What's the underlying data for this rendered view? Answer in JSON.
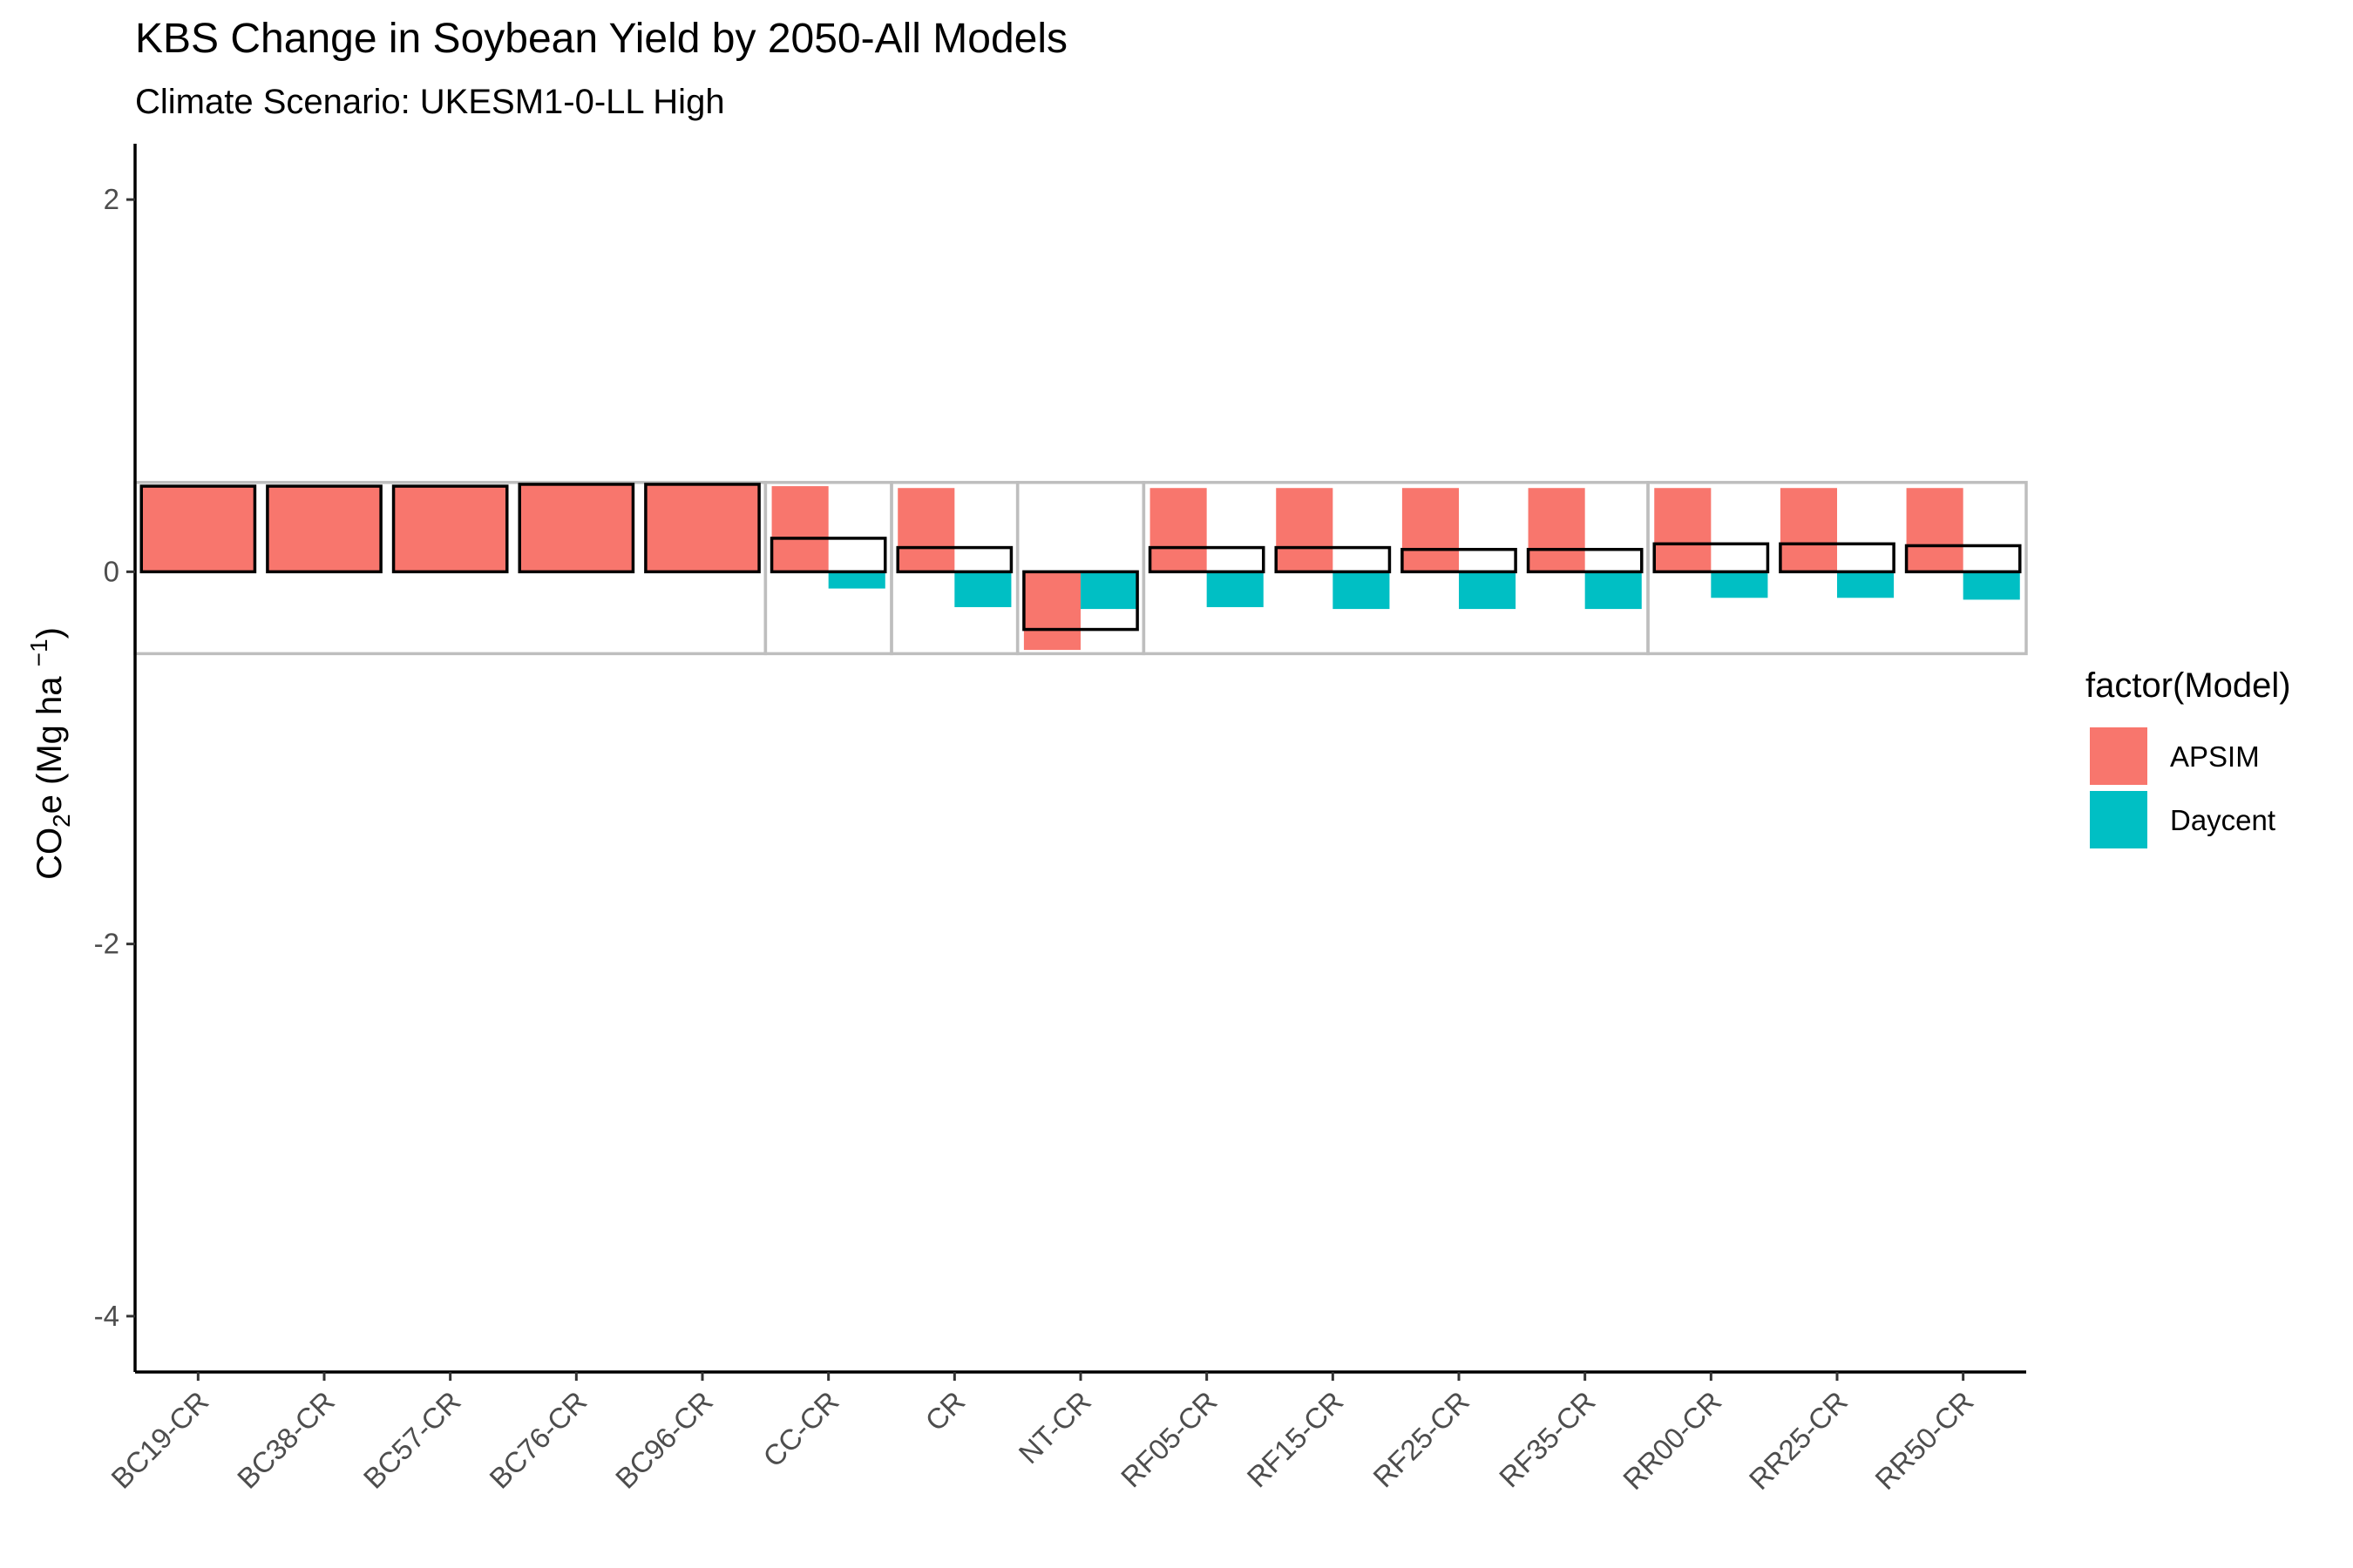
{
  "chart_data": {
    "type": "bar",
    "title": "KBS Change in Soybean Yield by 2050-All Models",
    "subtitle": "Climate Scenario: UKESM1-0-LL High",
    "ylabel": "CO2e (Mg ha -1)",
    "ylabel_parts": {
      "main": "CO",
      "sub": "2",
      "after": "e (Mg ha ",
      "sup": "−1",
      "close": ")"
    },
    "xlabel": "",
    "ylim": [
      -4.3,
      2.3
    ],
    "yticks": [
      2,
      0,
      -2,
      -4
    ],
    "ytick_labels": [
      "2",
      "0",
      "-2",
      "-4"
    ],
    "categories": [
      "BC19-CR",
      "BC38-CR",
      "BC57-CR",
      "BC76-CR",
      "BC96-CR",
      "CC-CR",
      "CR",
      "NT-CR",
      "RF05-CR",
      "RF15-CR",
      "RF25-CR",
      "RF35-CR",
      "RR00-CR",
      "RR25-CR",
      "RR50-CR"
    ],
    "series": [
      {
        "name": "APSIM",
        "color": "#F8766D",
        "values": [
          0.46,
          0.46,
          0.46,
          0.47,
          0.47,
          0.46,
          0.45,
          -0.42,
          0.45,
          0.45,
          0.45,
          0.45,
          0.45,
          0.45,
          0.45
        ]
      },
      {
        "name": "Daycent",
        "color": "#00BFC4",
        "values": [
          null,
          null,
          null,
          null,
          null,
          -0.09,
          -0.19,
          -0.2,
          -0.19,
          -0.2,
          -0.2,
          -0.2,
          -0.14,
          -0.14,
          -0.15
        ]
      }
    ],
    "mean_outline": [
      0.46,
      0.46,
      0.46,
      0.47,
      0.47,
      0.18,
      0.13,
      -0.31,
      0.13,
      0.13,
      0.12,
      0.12,
      0.15,
      0.15,
      0.14
    ],
    "group_boxes": [
      {
        "ymin": -0.44,
        "ymax": 0.48,
        "from": 0,
        "to": 4
      },
      {
        "ymin": -0.44,
        "ymax": 0.48,
        "from": 5,
        "to": 5
      },
      {
        "ymin": -0.44,
        "ymax": 0.48,
        "from": 6,
        "to": 6
      },
      {
        "ymin": -0.44,
        "ymax": 0.48,
        "from": 7,
        "to": 7
      },
      {
        "ymin": -0.44,
        "ymax": 0.48,
        "from": 8,
        "to": 11
      },
      {
        "ymin": -0.44,
        "ymax": 0.48,
        "from": 12,
        "to": 14
      }
    ],
    "legend": {
      "title": "factor(Model)",
      "position": "right"
    },
    "grid": false
  }
}
